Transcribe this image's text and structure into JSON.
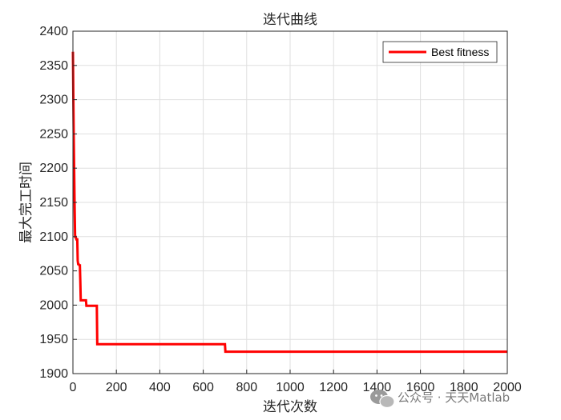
{
  "chart_data": {
    "type": "line",
    "title": "迭代曲线",
    "xlabel": "迭代次数",
    "ylabel": "最大完工时间",
    "xlim": [
      0,
      2000
    ],
    "ylim": [
      1900,
      2400
    ],
    "xticks": [
      0,
      200,
      400,
      600,
      800,
      1000,
      1200,
      1400,
      1600,
      1800,
      2000
    ],
    "yticks": [
      1900,
      1950,
      2000,
      2050,
      2100,
      2150,
      2200,
      2250,
      2300,
      2350,
      2400
    ],
    "grid": true,
    "legend_position": "top-right",
    "series": [
      {
        "name": "Best fitness",
        "color": "#ff0000",
        "x": [
          0,
          2,
          4,
          6,
          8,
          10,
          12,
          16,
          20,
          22,
          24,
          26,
          30,
          32,
          34,
          36,
          38,
          60,
          62,
          110,
          112,
          700,
          702,
          2000
        ],
        "y": [
          2370,
          2300,
          2240,
          2190,
          2140,
          2100,
          2100,
          2096,
          2096,
          2065,
          2060,
          2060,
          2058,
          2058,
          2035,
          2007,
          2007,
          2007,
          1999,
          1999,
          1943,
          1943,
          1932,
          1932
        ]
      }
    ]
  },
  "watermark": {
    "icon": "wechat-icon",
    "text": "公众号 · 天天Matlab"
  }
}
